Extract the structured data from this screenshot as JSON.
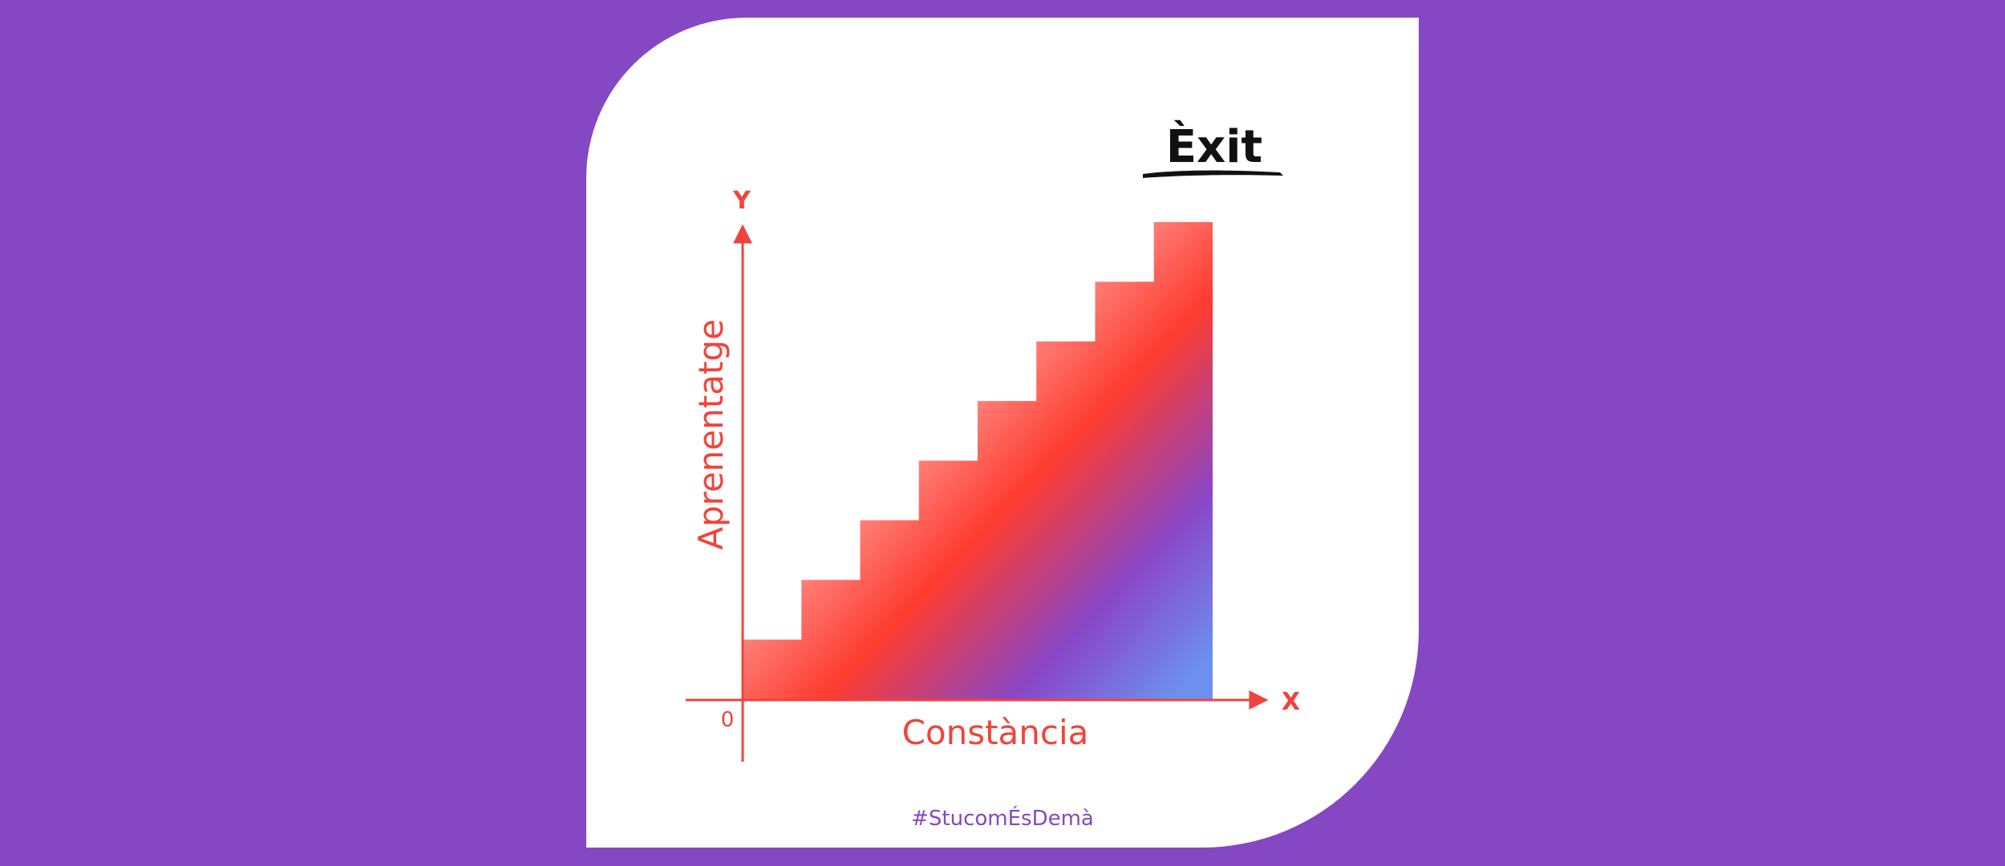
{
  "title": "Èxit",
  "axes": {
    "y_letter": "Y",
    "x_letter": "X",
    "origin": "0",
    "y_label": "Aprenentatge",
    "x_label": "Constància"
  },
  "footer": {
    "hashtag": "#StucomÉsDemà"
  },
  "colors": {
    "background": "#8547c4",
    "card": "#ffffff",
    "accent": "#f1433b",
    "staircase_gradient": [
      "#ffffff",
      "#ff3b2f",
      "#8547c4",
      "#6c8ff0"
    ],
    "title_text": "#111111"
  },
  "staircase": {
    "steps": 8
  }
}
